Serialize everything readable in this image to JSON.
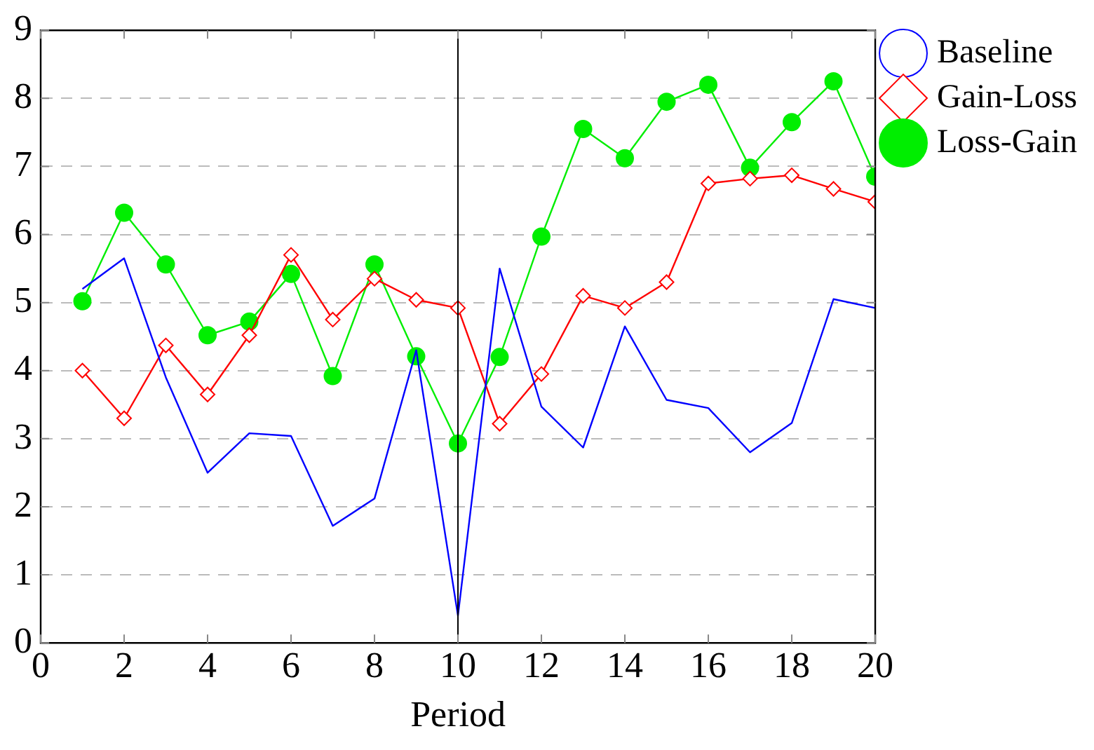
{
  "chart_data": {
    "type": "line",
    "xlabel": "Period",
    "x": [
      1,
      2,
      3,
      4,
      5,
      6,
      7,
      8,
      9,
      10,
      11,
      12,
      13,
      14,
      15,
      16,
      17,
      18,
      19,
      20
    ],
    "series": [
      {
        "name": "Baseline",
        "color": "#0000ff",
        "marker": "none",
        "values": [
          5.2,
          5.65,
          3.9,
          2.5,
          3.08,
          3.04,
          1.72,
          2.12,
          4.3,
          0.4,
          5.5,
          3.47,
          2.87,
          4.65,
          3.57,
          3.45,
          2.8,
          3.23,
          5.05,
          4.92
        ]
      },
      {
        "name": "Gain-Loss",
        "color": "#ff0000",
        "marker": "diamond",
        "values": [
          4.0,
          3.3,
          4.37,
          3.65,
          4.52,
          5.7,
          4.75,
          5.35,
          5.04,
          4.92,
          3.22,
          3.95,
          5.1,
          4.92,
          5.3,
          6.75,
          6.82,
          6.87,
          6.67,
          6.48
        ]
      },
      {
        "name": "Loss-Gain",
        "color": "#00ee00",
        "marker": "circle",
        "values": [
          5.02,
          6.32,
          5.56,
          4.52,
          4.72,
          5.42,
          3.92,
          5.56,
          4.21,
          2.93,
          4.2,
          5.97,
          7.55,
          7.12,
          7.95,
          8.2,
          6.98,
          7.65,
          8.25,
          6.85
        ]
      }
    ],
    "xlim": [
      0,
      20
    ],
    "xticks": [
      0,
      2,
      4,
      6,
      8,
      10,
      12,
      14,
      16,
      18,
      20
    ],
    "ylim": [
      0,
      9
    ],
    "yticks": [
      0,
      1,
      2,
      3,
      4,
      5,
      6,
      7,
      8,
      9
    ],
    "grid": "y",
    "legend": "top right",
    "ref_lines": [
      {
        "axis": "x",
        "value": 10,
        "color": "#000000"
      }
    ]
  }
}
